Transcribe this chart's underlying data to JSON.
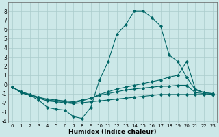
{
  "xlabel": "Humidex (Indice chaleur)",
  "xlim": [
    -0.5,
    23.5
  ],
  "ylim": [
    -4.2,
    9.0
  ],
  "yticks": [
    -4,
    -3,
    -2,
    -1,
    0,
    1,
    2,
    3,
    4,
    5,
    6,
    7,
    8
  ],
  "xticks": [
    0,
    1,
    2,
    3,
    4,
    5,
    6,
    7,
    8,
    9,
    10,
    11,
    12,
    13,
    14,
    15,
    16,
    17,
    18,
    19,
    20,
    21,
    22,
    23
  ],
  "bg_color": "#cce8e8",
  "grid_color": "#aacccc",
  "line_color": "#006666",
  "series1_x": [
    0,
    1,
    2,
    3,
    4,
    5,
    6,
    7,
    8,
    9,
    10,
    11,
    12,
    13,
    14,
    15,
    16,
    17,
    18,
    19,
    20,
    21,
    22,
    23
  ],
  "series1_y": [
    -0.3,
    -0.9,
    -1.2,
    -1.7,
    -2.5,
    -2.7,
    -2.8,
    -3.5,
    -3.7,
    -2.5,
    0.5,
    2.5,
    5.5,
    6.5,
    8.0,
    8.0,
    7.3,
    6.4,
    3.2,
    2.5,
    0.8,
    -0.6,
    -0.9,
    -1.0
  ],
  "series2_x": [
    0,
    1,
    2,
    3,
    4,
    5,
    6,
    7,
    8,
    9,
    10,
    11,
    12,
    13,
    14,
    15,
    16,
    17,
    18,
    19,
    20,
    21,
    22,
    23
  ],
  "series2_y": [
    -0.3,
    -0.8,
    -1.1,
    -1.4,
    -1.7,
    -1.8,
    -1.9,
    -2.0,
    -1.8,
    -1.5,
    -1.1,
    -0.8,
    -0.5,
    -0.3,
    -0.1,
    0.1,
    0.3,
    0.5,
    0.8,
    1.0,
    2.5,
    -0.5,
    -0.9,
    -1.0
  ],
  "series3_x": [
    0,
    1,
    2,
    3,
    4,
    5,
    6,
    7,
    8,
    9,
    10,
    11,
    12,
    13,
    14,
    15,
    16,
    17,
    18,
    19,
    20,
    21,
    22,
    23
  ],
  "series3_y": [
    -0.3,
    -0.8,
    -1.1,
    -1.4,
    -1.6,
    -1.7,
    -1.8,
    -1.9,
    -1.7,
    -1.5,
    -1.2,
    -1.0,
    -0.8,
    -0.6,
    -0.5,
    -0.4,
    -0.3,
    -0.2,
    -0.2,
    -0.1,
    -0.1,
    -0.9,
    -1.0,
    -1.1
  ],
  "series4_x": [
    0,
    1,
    2,
    3,
    4,
    5,
    6,
    7,
    8,
    9,
    10,
    11,
    12,
    13,
    14,
    15,
    16,
    17,
    18,
    19,
    20,
    21,
    22,
    23
  ],
  "series4_y": [
    -0.3,
    -0.9,
    -1.2,
    -1.5,
    -1.8,
    -1.9,
    -2.0,
    -2.1,
    -2.0,
    -1.9,
    -1.8,
    -1.7,
    -1.6,
    -1.5,
    -1.4,
    -1.3,
    -1.2,
    -1.1,
    -1.1,
    -1.1,
    -1.1,
    -1.1,
    -1.1,
    -1.1
  ]
}
